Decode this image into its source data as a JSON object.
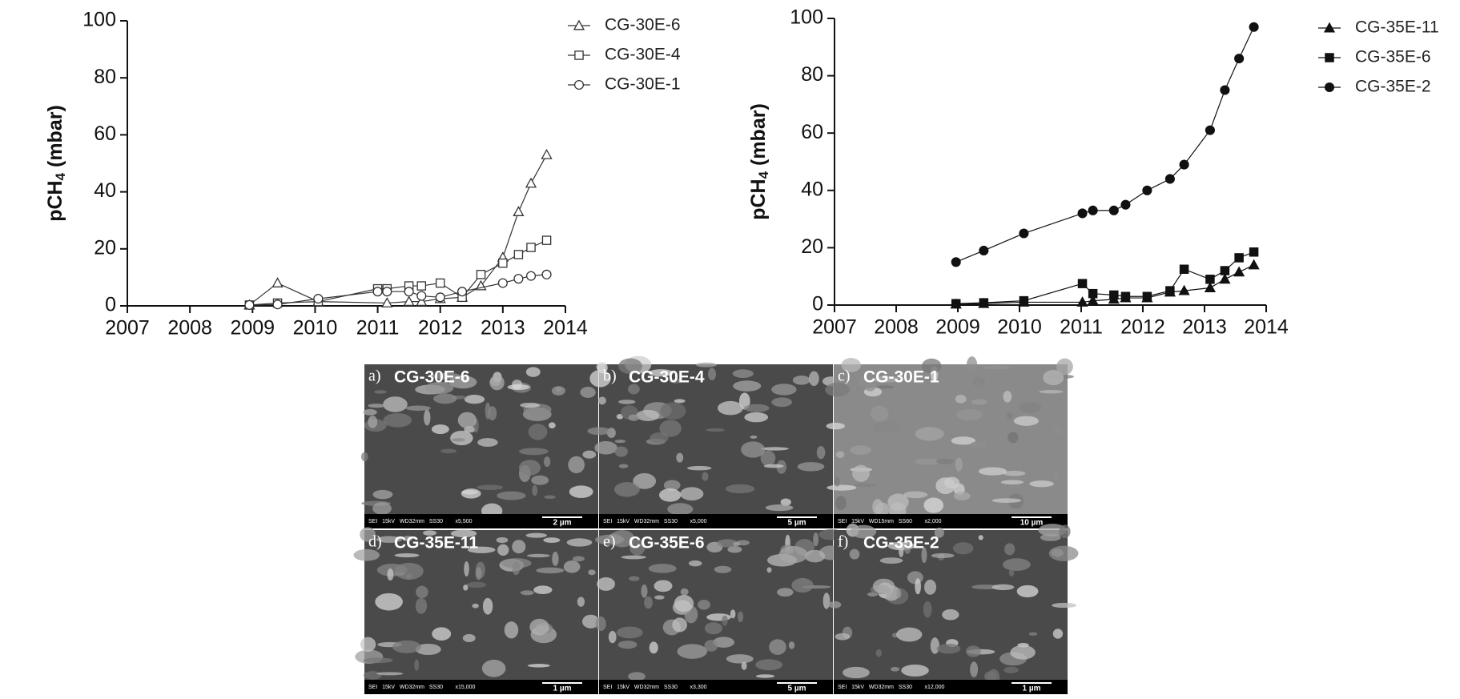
{
  "chart_data": [
    {
      "type": "line",
      "y_label": {
        "main": "pCH",
        "subscript": "4",
        "unit": "(mbar)"
      },
      "xlim": [
        2007,
        2014
      ],
      "xticks": [
        2007,
        2008,
        2009,
        2010,
        2011,
        2012,
        2013,
        2014
      ],
      "ylim": [
        0,
        100
      ],
      "yticks": [
        0,
        20,
        40,
        60,
        80,
        100
      ],
      "legend": "top-right",
      "series": [
        {
          "name": "CG-30E-6",
          "color": "#333333",
          "marker": "triangle",
          "marker_fill": "#ffffff",
          "x": [
            2008.95,
            2009.4,
            2010.05,
            2011.15,
            2011.5,
            2011.7,
            2012.0,
            2012.35,
            2012.65,
            2013.0,
            2013.25,
            2013.45,
            2013.7
          ],
          "values": [
            0.3,
            8,
            1.5,
            1,
            1.5,
            1.5,
            2.5,
            3,
            7,
            17,
            33,
            43,
            53
          ]
        },
        {
          "name": "CG-30E-4",
          "color": "#333333",
          "marker": "square",
          "marker_fill": "#ffffff",
          "x": [
            2008.95,
            2009.4,
            2010.05,
            2011.0,
            2011.15,
            2011.5,
            2011.7,
            2012.0,
            2012.35,
            2012.65,
            2013.0,
            2013.25,
            2013.45,
            2013.7
          ],
          "values": [
            0.3,
            1,
            1.5,
            6,
            6,
            7,
            7,
            8,
            3,
            11,
            15,
            18,
            20.5,
            23
          ]
        },
        {
          "name": "CG-30E-1",
          "color": "#333333",
          "marker": "circle",
          "marker_fill": "#ffffff",
          "x": [
            2008.95,
            2009.4,
            2010.05,
            2011.0,
            2011.15,
            2011.5,
            2011.7,
            2012.0,
            2012.35,
            2013.0,
            2013.25,
            2013.45,
            2013.7
          ],
          "values": [
            0.3,
            0.5,
            2.5,
            5,
            5,
            5,
            3.5,
            3,
            5,
            8,
            9.5,
            10.5,
            11
          ]
        }
      ]
    },
    {
      "type": "line",
      "y_label": {
        "main": "pCH",
        "subscript": "4",
        "unit": "(mbar)"
      },
      "xlim": [
        2007,
        2014
      ],
      "xticks": [
        2007,
        2008,
        2009,
        2010,
        2011,
        2012,
        2013,
        2014
      ],
      "ylim": [
        0,
        100
      ],
      "yticks": [
        0,
        20,
        40,
        60,
        80,
        100
      ],
      "legend": "top-right",
      "series": [
        {
          "name": "CG-35E-11",
          "color": "#111111",
          "marker": "triangle",
          "marker_fill": "#111111",
          "x": [
            2008.97,
            2009.42,
            2010.07,
            2011.02,
            2011.19,
            2011.53,
            2011.72,
            2012.07,
            2012.44,
            2012.67,
            2013.09,
            2013.33,
            2013.56,
            2013.8
          ],
          "values": [
            0.3,
            0.5,
            1,
            1,
            1.5,
            2,
            2.5,
            2.5,
            4.5,
            5,
            6,
            9,
            11.5,
            14
          ]
        },
        {
          "name": "CG-35E-6",
          "color": "#111111",
          "marker": "square",
          "marker_fill": "#111111",
          "x": [
            2008.97,
            2009.42,
            2010.07,
            2011.02,
            2011.19,
            2011.53,
            2011.72,
            2012.07,
            2012.44,
            2012.67,
            2013.09,
            2013.33,
            2013.56,
            2013.8
          ],
          "values": [
            0.5,
            0.8,
            1.5,
            7.5,
            4,
            3.5,
            3,
            3,
            5,
            12.5,
            9,
            12,
            16.5,
            18.5
          ]
        },
        {
          "name": "CG-35E-2",
          "color": "#111111",
          "marker": "circle",
          "marker_fill": "#111111",
          "x": [
            2008.97,
            2009.42,
            2010.07,
            2011.02,
            2011.19,
            2011.53,
            2011.72,
            2012.07,
            2012.44,
            2012.67,
            2013.09,
            2013.33,
            2013.56,
            2013.8
          ],
          "values": [
            15,
            19,
            25,
            32,
            33,
            33,
            35,
            40,
            44,
            49,
            61,
            75,
            86,
            97
          ]
        }
      ]
    }
  ],
  "micrographs": [
    {
      "letter": "a)",
      "label": "CG-30E-6",
      "info": "SEI   15kV   WD32mm   SS30        x5,500",
      "scale": "2 µm"
    },
    {
      "letter": "b)",
      "label": "CG-30E-4",
      "info": "SEI   15kV   WD32mm   SS30        x5,000",
      "scale": "5 µm"
    },
    {
      "letter": "c)",
      "label": "CG-30E-1",
      "info": "SEI   15kV   WD15mm   SS60        x2,000",
      "scale": "10 µm"
    },
    {
      "letter": "d)",
      "label": "CG-35E-11",
      "info": "SEI   15kV   WD32mm   SS30        x15,000",
      "scale": "1 µm"
    },
    {
      "letter": "e)",
      "label": "CG-35E-6",
      "info": "SEI   15kV   WD32mm   SS30        x3,300",
      "scale": "5 µm"
    },
    {
      "letter": "f)",
      "label": "CG-35E-2",
      "info": "SEI   15kV   WD32mm   SS30        x12,000",
      "scale": "1 µm"
    }
  ]
}
